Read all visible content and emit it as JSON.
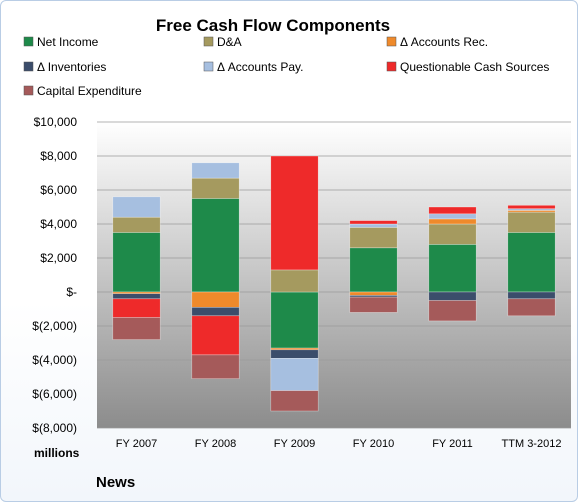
{
  "chart_data": {
    "type": "bar",
    "stacked": true,
    "title": "Free Cash Flow Components",
    "units_label": "millions",
    "source_label": "News",
    "categories": [
      "FY 2007",
      "FY 2008",
      "FY 2009",
      "FY 2010",
      "FY 2011",
      "TTM 3-2012"
    ],
    "ylim": [
      -8000,
      10000
    ],
    "yticks": [
      10000,
      8000,
      6000,
      4000,
      2000,
      0,
      -2000,
      -4000,
      -6000,
      -8000
    ],
    "ytick_labels": [
      "$10,000",
      "$8,000",
      "$6,000",
      "$4,000",
      "$2,000",
      "$-",
      "$(2,000)",
      "$(4,000)",
      "$(6,000)",
      "$(8,000)"
    ],
    "grid": true,
    "legend_position": "top",
    "series": [
      {
        "name": "Net Income",
        "color": "#1e8a4a",
        "values": [
          3500,
          5500,
          -3300,
          2600,
          2800,
          3500
        ]
      },
      {
        "name": "D&A",
        "color": "#a59a5f",
        "values": [
          900,
          1200,
          1300,
          1200,
          1200,
          1200
        ]
      },
      {
        "name": "Δ Accounts Rec.",
        "color": "#ef8a2b",
        "values": [
          -100,
          -900,
          -100,
          -200,
          300,
          100
        ]
      },
      {
        "name": "Δ Inventories",
        "color": "#3b4d6b",
        "values": [
          -300,
          -500,
          -500,
          -100,
          -500,
          -400
        ]
      },
      {
        "name": "Δ Accounts Pay.",
        "color": "#a6bfe0",
        "values": [
          1200,
          900,
          -1900,
          200,
          300,
          100
        ]
      },
      {
        "name": "Questionable Cash Sources",
        "color": "#ee2a2a",
        "values": [
          -1100,
          -2300,
          6700,
          200,
          400,
          200
        ]
      },
      {
        "name": "Capital Expenditure",
        "color": "#a55a5a",
        "values": [
          -1300,
          -1400,
          -1200,
          -900,
          -1200,
          -1000
        ]
      }
    ]
  }
}
